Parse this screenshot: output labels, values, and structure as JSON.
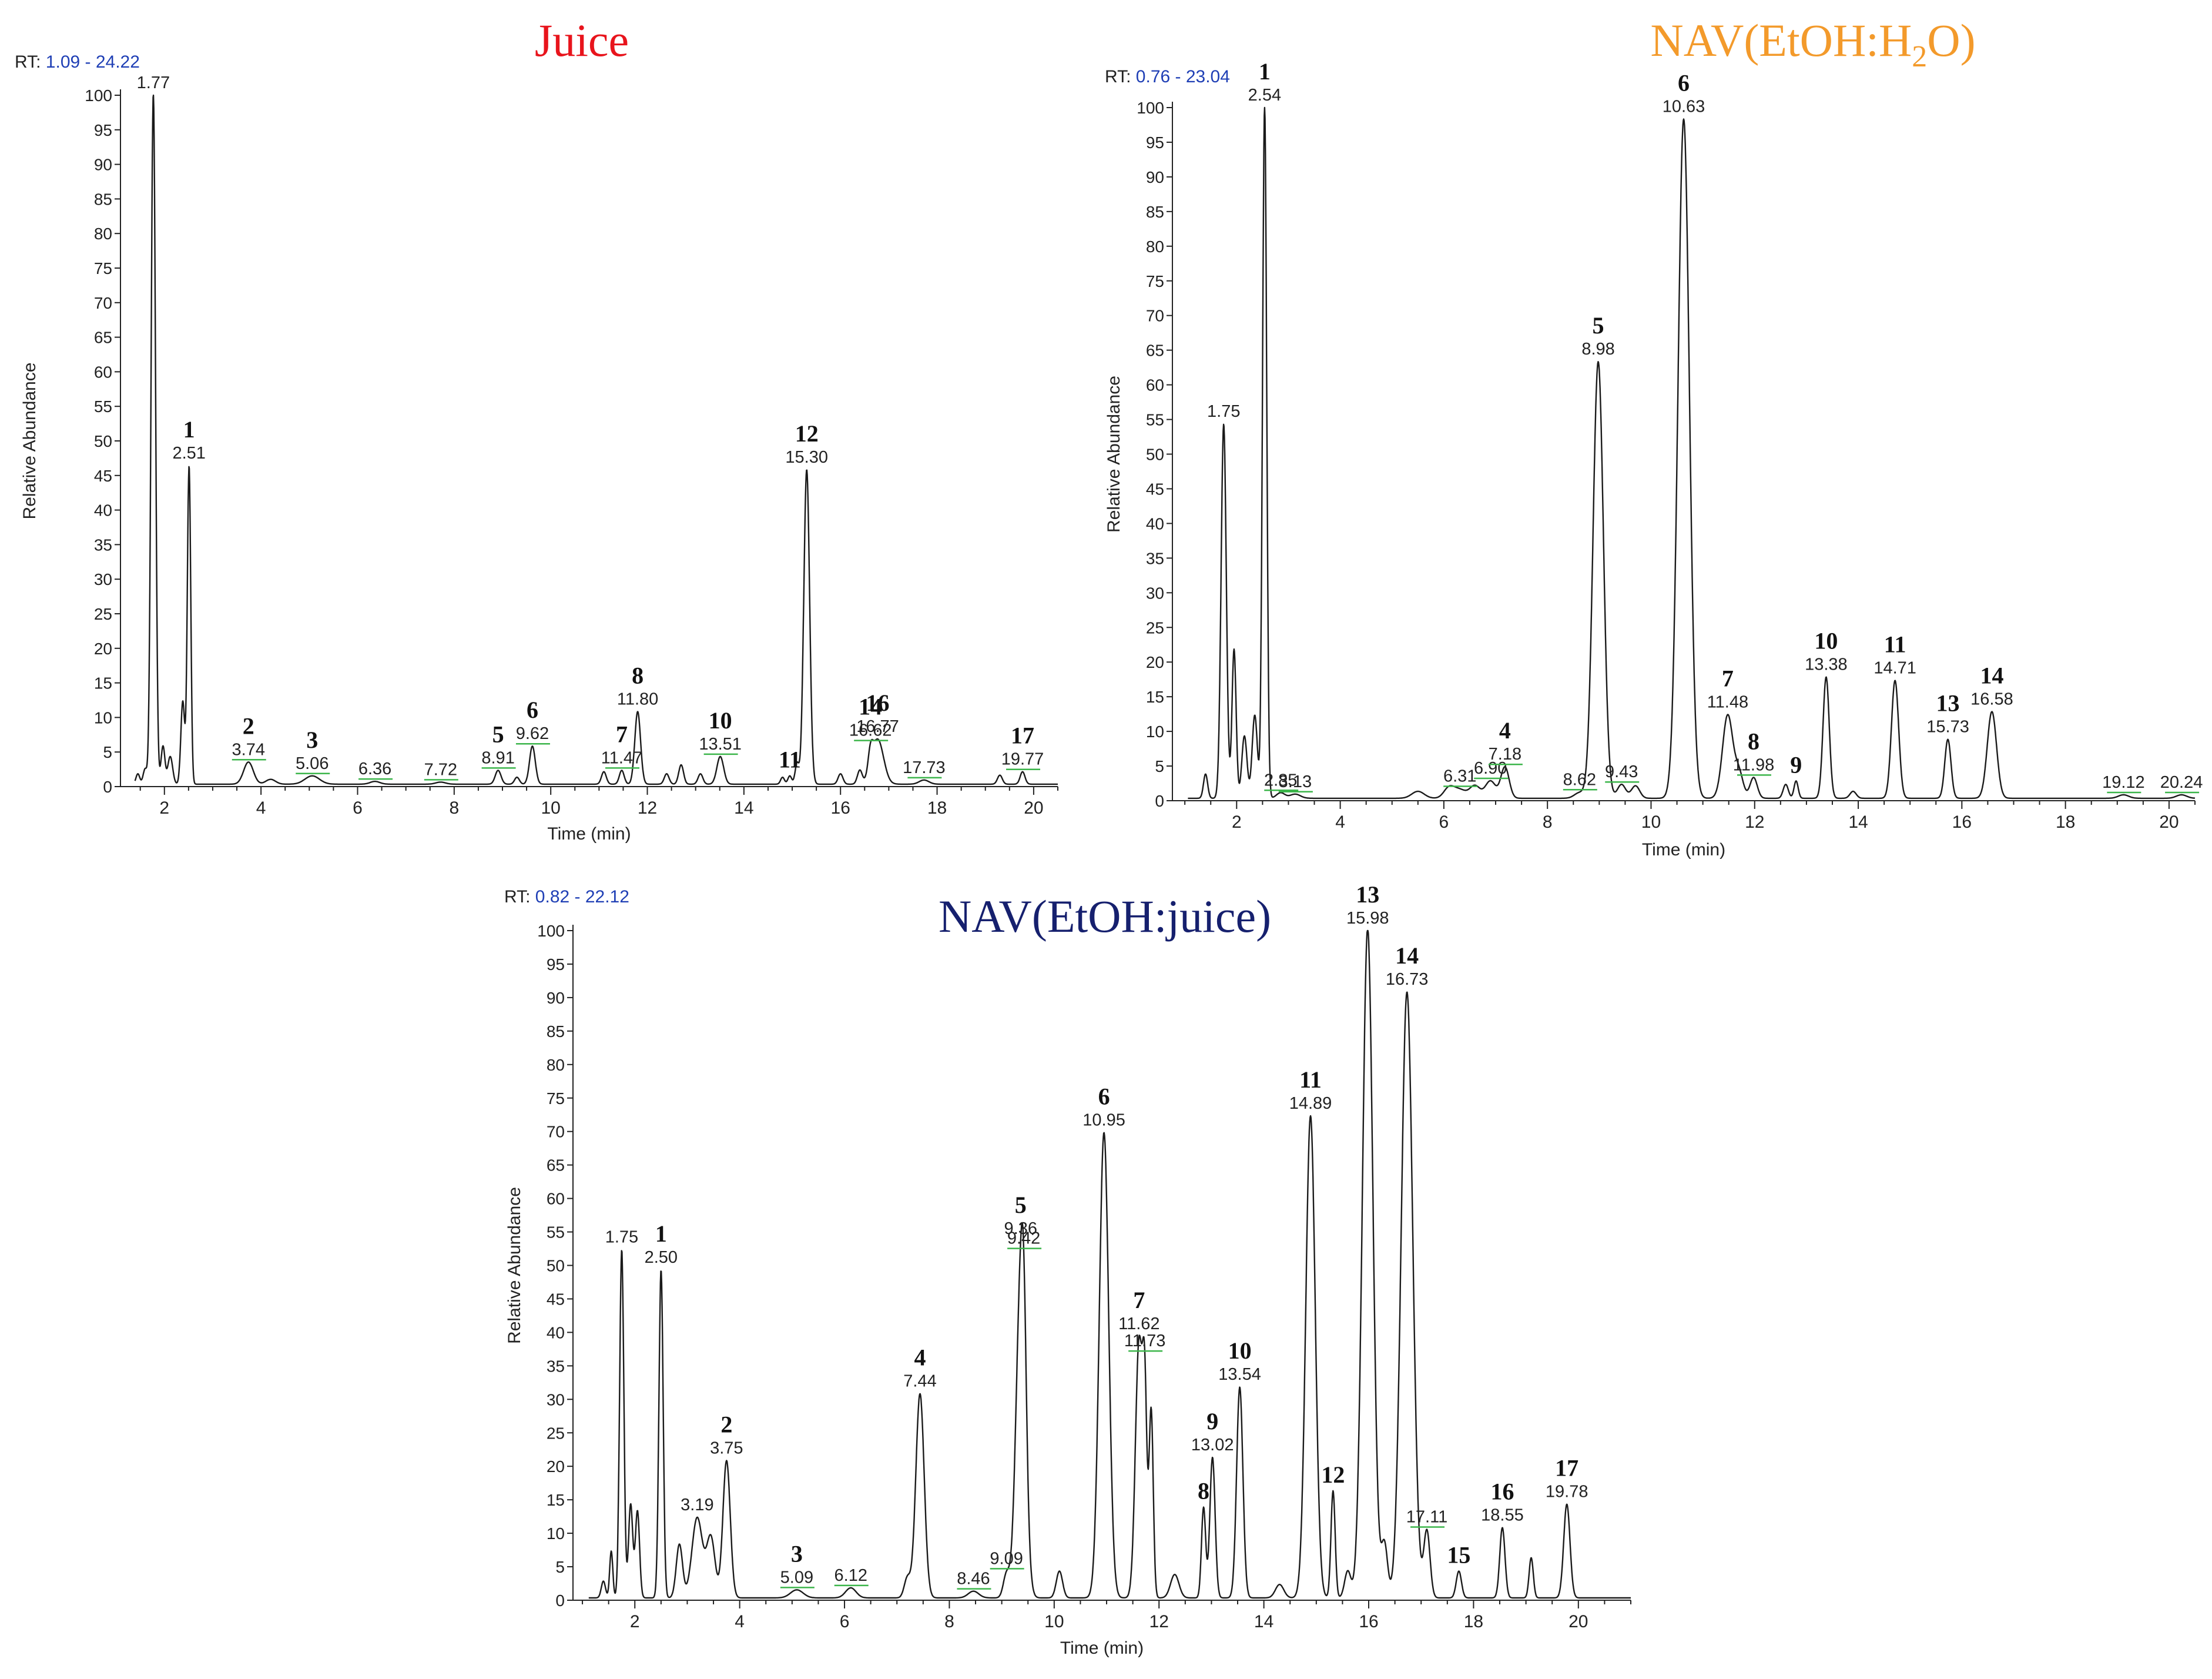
{
  "charts": [
    {
      "id": "juice",
      "title": "Juice",
      "title_color": "#e8141c",
      "rt_prefix": "RT:",
      "rt_range": "1.09 - 24.22",
      "xlabel": "Time (min)",
      "ylabel": "Relative Abundance",
      "x_ticks": [
        2,
        4,
        6,
        8,
        10,
        12,
        14,
        16,
        18,
        20
      ],
      "xlim": [
        1.09,
        20.5
      ],
      "y_ticks": [
        0,
        5,
        10,
        15,
        20,
        25,
        30,
        35,
        40,
        45,
        50,
        55,
        60,
        65,
        70,
        75,
        80,
        85,
        90,
        95,
        100
      ],
      "ylim": [
        0,
        100
      ],
      "peaks": [
        {
          "rt": "1.77",
          "x": 1.77,
          "y": 100,
          "num": "",
          "w": 0.045
        },
        {
          "rt": "2.51",
          "x": 2.51,
          "y": 46,
          "num": "1",
          "w": 0.035
        },
        {
          "rt": "3.74",
          "x": 3.74,
          "y": 3.2,
          "num": "2",
          "w": 0.1
        },
        {
          "rt": "5.06",
          "x": 5.06,
          "y": 1.2,
          "num": "3",
          "w": 0.15
        },
        {
          "rt": "6.36",
          "x": 6.36,
          "y": 0.4,
          "num": "",
          "w": 0.1
        },
        {
          "rt": "7.72",
          "x": 7.72,
          "y": 0.3,
          "num": "",
          "w": 0.1
        },
        {
          "rt": "8.91",
          "x": 8.91,
          "y": 2,
          "num": "5",
          "w": 0.06
        },
        {
          "rt": "9.62",
          "x": 9.62,
          "y": 5.5,
          "num": "6",
          "w": 0.06
        },
        {
          "rt": "11.47",
          "x": 11.47,
          "y": 2,
          "num": "7",
          "w": 0.05
        },
        {
          "rt": "11.80",
          "x": 11.8,
          "y": 10.5,
          "num": "8",
          "w": 0.06
        },
        {
          "rt": "13.51",
          "x": 13.51,
          "y": 4,
          "num": "10",
          "w": 0.07
        },
        {
          "rt": "",
          "x": 14.95,
          "y": 1.2,
          "num": "11",
          "w": 0.04
        },
        {
          "rt": "15.30",
          "x": 15.3,
          "y": 45.5,
          "num": "12",
          "w": 0.06
        },
        {
          "rt": "16.62",
          "x": 16.62,
          "y": 3,
          "num": "14",
          "w": 0.05
        },
        {
          "rt": "16.77",
          "x": 16.77,
          "y": 6.5,
          "num": "16",
          "w": 0.12
        },
        {
          "rt": "17.73",
          "x": 17.73,
          "y": 0.6,
          "num": "",
          "w": 0.1
        },
        {
          "rt": "19.77",
          "x": 19.77,
          "y": 1.8,
          "num": "17",
          "w": 0.05
        }
      ],
      "minor_peaks": [
        {
          "x": 1.45,
          "y": 1.5,
          "w": 0.04
        },
        {
          "x": 1.6,
          "y": 2.2,
          "w": 0.04
        },
        {
          "x": 1.97,
          "y": 5.5,
          "w": 0.04
        },
        {
          "x": 2.12,
          "y": 4,
          "w": 0.05
        },
        {
          "x": 2.38,
          "y": 12,
          "w": 0.04
        },
        {
          "x": 4.2,
          "y": 0.7,
          "w": 0.1
        },
        {
          "x": 9.3,
          "y": 1,
          "w": 0.05
        },
        {
          "x": 11.1,
          "y": 1.8,
          "w": 0.05
        },
        {
          "x": 12.4,
          "y": 1.5,
          "w": 0.05
        },
        {
          "x": 12.7,
          "y": 2.8,
          "w": 0.05
        },
        {
          "x": 13.1,
          "y": 1.5,
          "w": 0.05
        },
        {
          "x": 14.8,
          "y": 1,
          "w": 0.04
        },
        {
          "x": 15.1,
          "y": 3,
          "w": 0.04
        },
        {
          "x": 16.0,
          "y": 1.5,
          "w": 0.05
        },
        {
          "x": 16.4,
          "y": 2,
          "w": 0.05
        },
        {
          "x": 19.3,
          "y": 1.3,
          "w": 0.05
        }
      ]
    },
    {
      "id": "nav-etoh-h2o",
      "title": "NAV(EtOH:H",
      "title_sub": "2",
      "title_end": "O)",
      "title_color": "#f39a2b",
      "rt_prefix": "RT:",
      "rt_range": "0.76 - 23.04",
      "xlabel": "Time (min)",
      "ylabel": "Relative Abundance",
      "x_ticks": [
        2,
        4,
        6,
        8,
        10,
        12,
        14,
        16,
        18,
        20
      ],
      "xlim": [
        0.76,
        20.5
      ],
      "y_ticks": [
        0,
        5,
        10,
        15,
        20,
        25,
        30,
        35,
        40,
        45,
        50,
        55,
        60,
        65,
        70,
        75,
        80,
        85,
        90,
        95,
        100
      ],
      "ylim": [
        0,
        100
      ],
      "peaks": [
        {
          "rt": "1.75",
          "x": 1.75,
          "y": 54,
          "num": "",
          "w": 0.05
        },
        {
          "rt": "2.54",
          "x": 2.54,
          "y": 100,
          "num": "1",
          "w": 0.04
        },
        {
          "rt": "2.85",
          "x": 2.85,
          "y": 0.8,
          "num": "",
          "w": 0.08
        },
        {
          "rt": "3.13",
          "x": 3.13,
          "y": 0.6,
          "num": "",
          "w": 0.1
        },
        {
          "rt": "6.31",
          "x": 6.31,
          "y": 1.2,
          "num": "",
          "w": 0.12
        },
        {
          "rt": "6.90",
          "x": 6.9,
          "y": 2.5,
          "num": "",
          "w": 0.1
        },
        {
          "rt": "7.18",
          "x": 7.18,
          "y": 4.5,
          "num": "4",
          "w": 0.08
        },
        {
          "rt": "8.62",
          "x": 8.62,
          "y": 0.8,
          "num": "",
          "w": 0.1
        },
        {
          "rt": "8.98",
          "x": 8.98,
          "y": 63,
          "num": "5",
          "w": 0.1
        },
        {
          "rt": "9.43",
          "x": 9.43,
          "y": 2,
          "num": "",
          "w": 0.08
        },
        {
          "rt": "10.63",
          "x": 10.63,
          "y": 98,
          "num": "6",
          "w": 0.11
        },
        {
          "rt": "11.48",
          "x": 11.48,
          "y": 12,
          "num": "7",
          "w": 0.1
        },
        {
          "rt": "11.98",
          "x": 11.98,
          "y": 3,
          "num": "8",
          "w": 0.07
        },
        {
          "rt": "",
          "x": 12.8,
          "y": 2.5,
          "num": "9",
          "w": 0.04
        },
        {
          "rt": "13.38",
          "x": 13.38,
          "y": 17.5,
          "num": "10",
          "w": 0.06
        },
        {
          "rt": "14.71",
          "x": 14.71,
          "y": 17,
          "num": "11",
          "w": 0.07
        },
        {
          "rt": "15.73",
          "x": 15.73,
          "y": 8.5,
          "num": "13",
          "w": 0.06
        },
        {
          "rt": "16.58",
          "x": 16.58,
          "y": 12.5,
          "num": "14",
          "w": 0.09
        },
        {
          "rt": "19.12",
          "x": 19.12,
          "y": 0.5,
          "num": "",
          "w": 0.1
        },
        {
          "rt": "20.24",
          "x": 20.24,
          "y": 0.5,
          "num": "",
          "w": 0.1
        }
      ],
      "minor_peaks": [
        {
          "x": 1.4,
          "y": 3.5,
          "w": 0.04
        },
        {
          "x": 1.95,
          "y": 21.5,
          "w": 0.04
        },
        {
          "x": 2.15,
          "y": 9,
          "w": 0.05
        },
        {
          "x": 2.35,
          "y": 12,
          "w": 0.05
        },
        {
          "x": 5.5,
          "y": 1,
          "w": 0.12
        },
        {
          "x": 6.1,
          "y": 1.5,
          "w": 0.1
        },
        {
          "x": 6.6,
          "y": 1.8,
          "w": 0.1
        },
        {
          "x": 9.7,
          "y": 1.8,
          "w": 0.08
        },
        {
          "x": 11.7,
          "y": 3.5,
          "w": 0.08
        },
        {
          "x": 12.6,
          "y": 2,
          "w": 0.05
        },
        {
          "x": 13.9,
          "y": 1,
          "w": 0.06
        }
      ]
    },
    {
      "id": "nav-etoh-juice",
      "title": "NAV(EtOH:juice)",
      "title_color": "#16206e",
      "rt_prefix": "RT:",
      "rt_range": "0.82 - 22.12",
      "xlabel": "Time (min)",
      "ylabel": "Relative Abundance",
      "x_ticks": [
        2,
        4,
        6,
        8,
        10,
        12,
        14,
        16,
        18,
        20
      ],
      "xlim": [
        0.82,
        21.0
      ],
      "y_ticks": [
        0,
        5,
        10,
        15,
        20,
        25,
        30,
        35,
        40,
        45,
        50,
        55,
        60,
        65,
        70,
        75,
        80,
        85,
        90,
        95,
        100
      ],
      "ylim": [
        0,
        100
      ],
      "peaks": [
        {
          "rt": "1.75",
          "x": 1.75,
          "y": 52,
          "num": "",
          "w": 0.04
        },
        {
          "rt": "2.50",
          "x": 2.5,
          "y": 49,
          "num": "1",
          "w": 0.04
        },
        {
          "rt": "3.19",
          "x": 3.19,
          "y": 12,
          "num": "",
          "w": 0.1
        },
        {
          "rt": "3.75",
          "x": 3.75,
          "y": 20.5,
          "num": "2",
          "w": 0.07
        },
        {
          "rt": "5.09",
          "x": 5.09,
          "y": 1.2,
          "num": "3",
          "w": 0.12
        },
        {
          "rt": "6.12",
          "x": 6.12,
          "y": 1.5,
          "num": "",
          "w": 0.1
        },
        {
          "rt": "7.44",
          "x": 7.44,
          "y": 30.5,
          "num": "4",
          "w": 0.08
        },
        {
          "rt": "8.46",
          "x": 8.46,
          "y": 1,
          "num": "",
          "w": 0.1
        },
        {
          "rt": "9.09",
          "x": 9.09,
          "y": 3.5,
          "num": "",
          "w": 0.06
        },
        {
          "rt": "9.36",
          "x": 9.36,
          "y": 46,
          "num": "5",
          "w": 0.09
        },
        {
          "rt": "9.42",
          "x": 9.42,
          "y": 15,
          "num": "",
          "w": 0.05
        },
        {
          "rt": "10.95",
          "x": 10.95,
          "y": 69.5,
          "num": "6",
          "w": 0.09
        },
        {
          "rt": "11.62",
          "x": 11.62,
          "y": 38.5,
          "num": "7",
          "w": 0.07
        },
        {
          "rt": "11.73",
          "x": 11.73,
          "y": 25,
          "num": "",
          "w": 0.04
        },
        {
          "rt": "13.02",
          "x": 13.02,
          "y": 21,
          "num": "9",
          "w": 0.05
        },
        {
          "rt": "",
          "x": 12.85,
          "y": 13.5,
          "num": "8",
          "w": 0.04
        },
        {
          "rt": "13.54",
          "x": 13.54,
          "y": 31.5,
          "num": "10",
          "w": 0.06
        },
        {
          "rt": "14.89",
          "x": 14.89,
          "y": 72,
          "num": "11",
          "w": 0.09
        },
        {
          "rt": "",
          "x": 15.32,
          "y": 16,
          "num": "12",
          "w": 0.04
        },
        {
          "rt": "15.98",
          "x": 15.98,
          "y": 100,
          "num": "13",
          "w": 0.1
        },
        {
          "rt": "16.73",
          "x": 16.73,
          "y": 90.5,
          "num": "14",
          "w": 0.11
        },
        {
          "rt": "17.11",
          "x": 17.11,
          "y": 10,
          "num": "",
          "w": 0.06
        },
        {
          "rt": "",
          "x": 17.72,
          "y": 4,
          "num": "15",
          "w": 0.05
        },
        {
          "rt": "18.55",
          "x": 18.55,
          "y": 10.5,
          "num": "16",
          "w": 0.05
        },
        {
          "rt": "19.78",
          "x": 19.78,
          "y": 14,
          "num": "17",
          "w": 0.06
        }
      ],
      "minor_peaks": [
        {
          "x": 1.4,
          "y": 2.5,
          "w": 0.04
        },
        {
          "x": 1.55,
          "y": 7,
          "w": 0.03
        },
        {
          "x": 1.92,
          "y": 14,
          "w": 0.04
        },
        {
          "x": 2.05,
          "y": 13,
          "w": 0.04
        },
        {
          "x": 2.85,
          "y": 8,
          "w": 0.06
        },
        {
          "x": 3.45,
          "y": 9,
          "w": 0.08
        },
        {
          "x": 7.2,
          "y": 3,
          "w": 0.06
        },
        {
          "x": 10.1,
          "y": 4,
          "w": 0.06
        },
        {
          "x": 11.85,
          "y": 28,
          "w": 0.04
        },
        {
          "x": 12.3,
          "y": 3.5,
          "w": 0.08
        },
        {
          "x": 14.3,
          "y": 2,
          "w": 0.08
        },
        {
          "x": 15.6,
          "y": 4,
          "w": 0.06
        },
        {
          "x": 16.3,
          "y": 8,
          "w": 0.06
        },
        {
          "x": 19.1,
          "y": 6,
          "w": 0.04
        }
      ]
    }
  ],
  "colors": {
    "trace": "#1a1a1a",
    "axis": "#222222",
    "rt_value": "#1f3fb5",
    "baseline_marker": "#3bb54a"
  }
}
